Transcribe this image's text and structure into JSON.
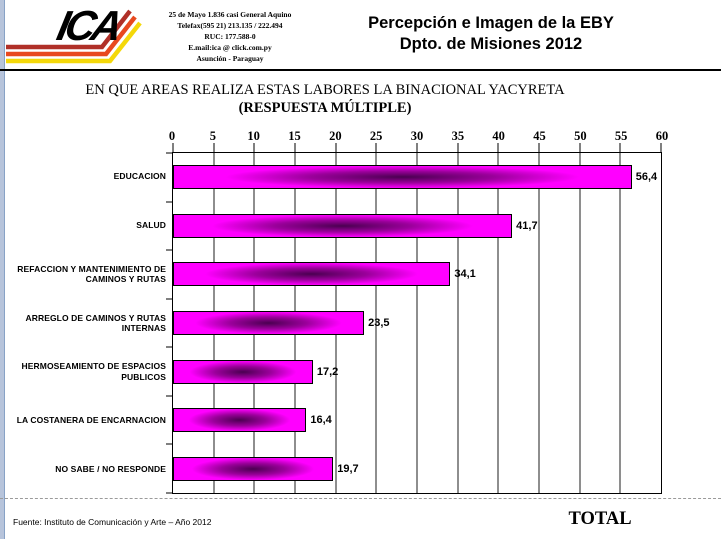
{
  "window": {
    "left_border_color": "#b7c4db"
  },
  "header": {
    "logo": {
      "text": "ICA",
      "stripe_colors": [
        "#b03028",
        "#e8491f",
        "#f4d80a"
      ]
    },
    "contact_lines": [
      "25 de Mayo 1.836 casi General Aquino",
      "Telefax(595 21) 213.135 / 222.494",
      "RUC: 177.588-0",
      "E.mail:ica @ click.com.py",
      "Asunción - Paraguay"
    ],
    "title_line1": "Percepción e Imagen de la EBY",
    "title_line2": "Dpto. de Misiones 2012"
  },
  "chart": {
    "title_line1": "EN QUE AREAS REALIZA ESTAS LABORES LA BINACIONAL YACYRETA",
    "title_line2": "(RESPUESTA MÚLTIPLE)"
  },
  "chart_data": {
    "type": "bar",
    "orientation": "horizontal",
    "title": "EN QUE AREAS REALIZA ESTAS LABORES LA BINACIONAL YACYRETA (RESPUESTA MÚLTIPLE)",
    "categories": [
      "EDUCACION",
      "SALUD",
      "REFACCION Y MANTENIMIENTO DE CAMINOS Y  RUTAS",
      "ARREGLO DE CAMINOS Y RUTAS INTERNAS",
      "HERMOSEAMIENTO DE ESPACIOS PUBLICOS",
      "LA COSTANERA DE ENCARNACION",
      "NO SABE / NO RESPONDE"
    ],
    "category_lines": [
      [
        "EDUCACION"
      ],
      [
        "SALUD"
      ],
      [
        "REFACCION Y MANTENIMIENTO DE",
        "CAMINOS Y  RUTAS"
      ],
      [
        "ARREGLO DE CAMINOS Y RUTAS",
        "INTERNAS"
      ],
      [
        "HERMOSEAMIENTO DE ESPACIOS",
        "PUBLICOS"
      ],
      [
        "LA COSTANERA DE ENCARNACION"
      ],
      [
        "NO SABE / NO RESPONDE"
      ]
    ],
    "values": [
      56.4,
      41.7,
      34.1,
      23.5,
      17.2,
      16.4,
      19.7
    ],
    "value_labels": [
      "56,4",
      "41,7",
      "34,1",
      "23,5",
      "17,2",
      "16,4",
      "19,7"
    ],
    "x_ticks": [
      0,
      5,
      10,
      15,
      20,
      25,
      30,
      35,
      40,
      45,
      50,
      55,
      60
    ],
    "xlim": [
      0,
      60
    ],
    "grid": true,
    "legend": false,
    "bar_color": "#ff00ff",
    "bar_core_color": "#4a0050",
    "bar_border_color": "#000000"
  },
  "footer": {
    "source": "Fuente: Instituto de Comunicación y Arte  – Año 2012",
    "total_label": "TOTAL"
  }
}
